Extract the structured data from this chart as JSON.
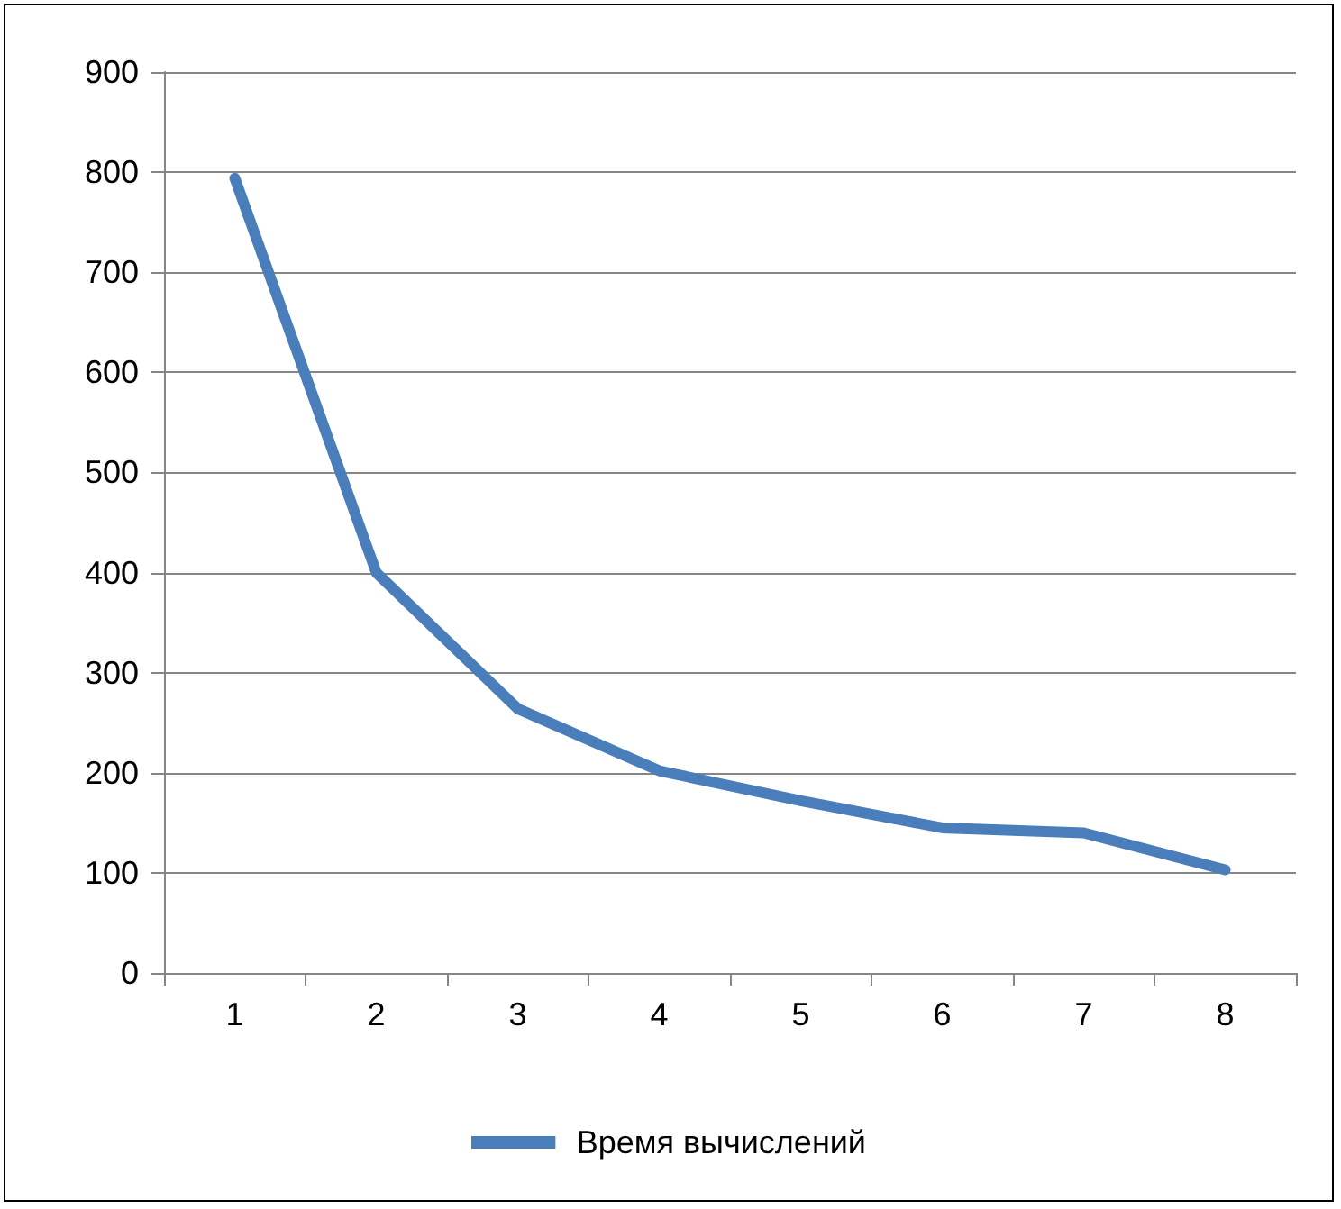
{
  "chart_data": {
    "type": "line",
    "categories": [
      "1",
      "2",
      "3",
      "4",
      "5",
      "6",
      "7",
      "8"
    ],
    "series": [
      {
        "name": "Время вычислений",
        "color": "#4a7ebb",
        "values": [
          794,
          400,
          264,
          202,
          172,
          145,
          140,
          103
        ]
      }
    ],
    "ylim": [
      0,
      900
    ],
    "yticks": [
      0,
      100,
      200,
      300,
      400,
      500,
      600,
      700,
      800,
      900
    ],
    "grid": "y",
    "legend": "bottom",
    "marker": "none",
    "line_style": "solid"
  }
}
